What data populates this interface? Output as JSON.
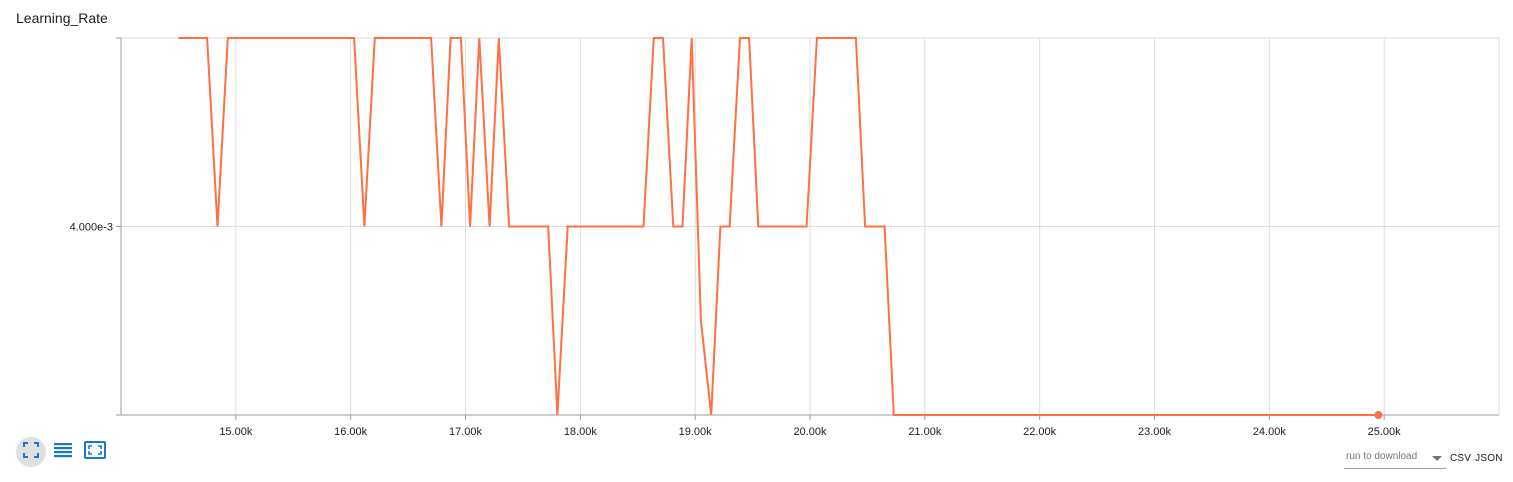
{
  "chart_title": "Learning_Rate",
  "chart_data": {
    "type": "line",
    "title": "Learning_Rate",
    "xlabel": "",
    "ylabel": "",
    "x_ticks": [
      15000,
      16000,
      17000,
      18000,
      19000,
      20000,
      21000,
      22000,
      23000,
      24000,
      25000
    ],
    "x_tick_labels": [
      "15.00k",
      "16.00k",
      "17.00k",
      "18.00k",
      "19.00k",
      "20.00k",
      "21.00k",
      "22.00k",
      "23.00k",
      "24.00k",
      "25.00k"
    ],
    "y_ticks": [
      0.0024,
      0.004,
      0.0056
    ],
    "y_tick_labels": [
      "",
      "4.000e-3",
      ""
    ],
    "xlim": [
      14000,
      26000
    ],
    "ylim": [
      0.0024,
      0.0056
    ],
    "grid": true,
    "series": [
      {
        "color": "#ff7043",
        "x": [
          14500,
          14750,
          14840,
          14930,
          15450,
          16030,
          16120,
          16210,
          16700,
          16790,
          16870,
          16960,
          17040,
          17120,
          17210,
          17290,
          17380,
          17720,
          17800,
          17890,
          18550,
          18640,
          18720,
          18810,
          18890,
          18970,
          19050,
          19140,
          19220,
          19300,
          19390,
          19470,
          19550,
          19970,
          20060,
          20400,
          20480,
          20650,
          20730,
          24950
        ],
        "y": [
          0.0056,
          0.0056,
          0.004,
          0.0056,
          0.0056,
          0.0056,
          0.004,
          0.0056,
          0.0056,
          0.004,
          0.0056,
          0.0056,
          0.004,
          0.0056,
          0.004,
          0.0056,
          0.004,
          0.004,
          0.0024,
          0.004,
          0.004,
          0.0056,
          0.0056,
          0.004,
          0.004,
          0.0056,
          0.0032,
          0.0024,
          0.004,
          0.004,
          0.0056,
          0.0056,
          0.004,
          0.004,
          0.0056,
          0.0056,
          0.004,
          0.004,
          0.0024,
          0.0024
        ]
      }
    ]
  },
  "controls": {
    "fit_icon": "fit-to-screen-icon",
    "log_icon": "list-lines-icon",
    "expand_icon": "expand-icon"
  },
  "download": {
    "placeholder": "run to download",
    "csv_label": "CSV",
    "json_label": "JSON"
  },
  "colors": {
    "series": "#ff7043",
    "grid": "#dddddd",
    "axis": "#9e9e9e",
    "icon_blue": "#1976d2"
  }
}
